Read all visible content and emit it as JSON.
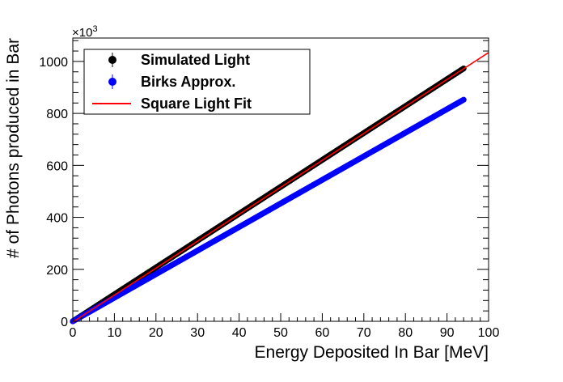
{
  "chart_data": {
    "type": "scatter",
    "xlabel": "Energy Deposited In Bar [MeV]",
    "ylabel": "# of Photons produced in Bar",
    "y_multiplier": {
      "base": "×10",
      "exponent": "3"
    },
    "xlim": [
      0,
      100
    ],
    "ylim": [
      0,
      1090
    ],
    "x_ticks": [
      0,
      10,
      20,
      30,
      40,
      50,
      60,
      70,
      80,
      90,
      100
    ],
    "y_ticks": [
      0,
      200,
      400,
      600,
      800,
      1000
    ],
    "x_tick_labels": [
      "0",
      "10",
      "20",
      "30",
      "40",
      "50",
      "60",
      "70",
      "80",
      "90",
      "100"
    ],
    "y_tick_labels": [
      "0",
      "200",
      "400",
      "600",
      "800",
      "1000"
    ],
    "grid": false,
    "legend_position": "top-left",
    "series": [
      {
        "name": "Simulated Light",
        "kind": "points",
        "color": "#000000",
        "x_range": [
          0,
          94
        ],
        "slope": 10.35
      },
      {
        "name": "Birks Approx.",
        "kind": "points",
        "color": "#0000ff",
        "x_range": [
          0,
          94
        ],
        "slope": 9.07
      },
      {
        "name": "Square Light Fit",
        "kind": "line",
        "color": "#ff0000",
        "x_range": [
          0,
          100
        ],
        "slope": 10.37,
        "intercept": -3
      }
    ]
  }
}
